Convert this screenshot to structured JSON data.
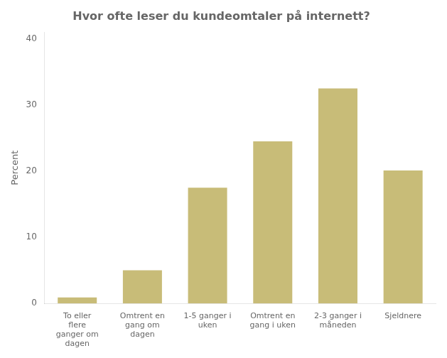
{
  "chart_data": {
    "type": "bar",
    "title": "Hvor ofte leser du kundeomtaler på internett?",
    "ylabel": "Percent",
    "categories": [
      "To eller\nflere\nganger om\ndagen",
      "Omtrent en\ngang om\ndagen",
      "1-5 ganger i\nuken",
      "Omtrent en\ngang i uken",
      "2-3 ganger i\nmåneden",
      "Sjeldnere"
    ],
    "values": [
      0.9,
      5.0,
      17.5,
      24.5,
      32.5,
      20.1
    ],
    "color": "#c8bc78",
    "ylim": [
      0,
      41
    ],
    "yticks": [
      0,
      10,
      20,
      30,
      40
    ],
    "grid": false
  }
}
